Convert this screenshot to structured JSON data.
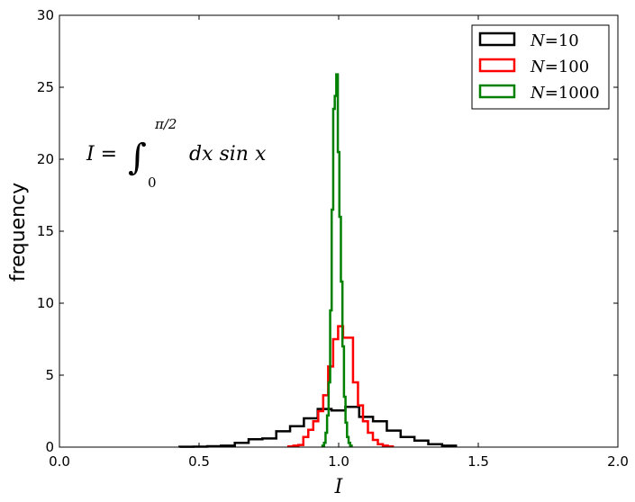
{
  "chart_data": {
    "type": "histogram-step",
    "title": "",
    "xlabel": "I",
    "ylabel": "frequency",
    "xlim": [
      0.0,
      2.0
    ],
    "ylim": [
      0,
      30
    ],
    "xticks": [
      "0.0",
      "0.5",
      "1.0",
      "1.5",
      "2.0"
    ],
    "yticks": [
      "0",
      "5",
      "10",
      "15",
      "20",
      "25",
      "30"
    ],
    "annotation": "I = ∫₀^{π/2} dx sin x",
    "annotation_parts": {
      "lhs": "I =",
      "lower": "0",
      "upper": "π/2",
      "integrand": "dx sin x"
    },
    "legend_position": "top-right",
    "series": [
      {
        "name": "N = 10",
        "label_var": "N",
        "label_val": "10",
        "color": "#000000",
        "bin_start": 0.43,
        "bin_width": 0.0495,
        "values": [
          0.02,
          0.03,
          0.06,
          0.1,
          0.3,
          0.55,
          0.6,
          1.1,
          1.45,
          2.0,
          2.65,
          2.55,
          2.8,
          2.1,
          1.8,
          1.15,
          0.7,
          0.45,
          0.2,
          0.1
        ]
      },
      {
        "name": "N = 100",
        "label_var": "N",
        "label_val": "100",
        "color": "#ff0000",
        "bin_start": 0.82,
        "bin_width": 0.0178,
        "values": [
          0.05,
          0.1,
          0.15,
          0.7,
          1.2,
          1.8,
          2.5,
          3.6,
          5.6,
          7.5,
          8.4,
          7.6,
          7.6,
          4.5,
          2.9,
          1.8,
          1.0,
          0.5,
          0.2,
          0.1,
          0.05
        ]
      },
      {
        "name": "N = 1000",
        "label_var": "N",
        "label_val": "1000",
        "color": "#008000",
        "bin_start": 0.942,
        "bin_width": 0.0055,
        "values": [
          0.1,
          0.3,
          1.0,
          2.2,
          4.5,
          9.5,
          16.5,
          23.5,
          24.4,
          25.9,
          20.5,
          16,
          11.5,
          7,
          3.5,
          1.7,
          0.7,
          0.3,
          0.1
        ]
      }
    ]
  }
}
